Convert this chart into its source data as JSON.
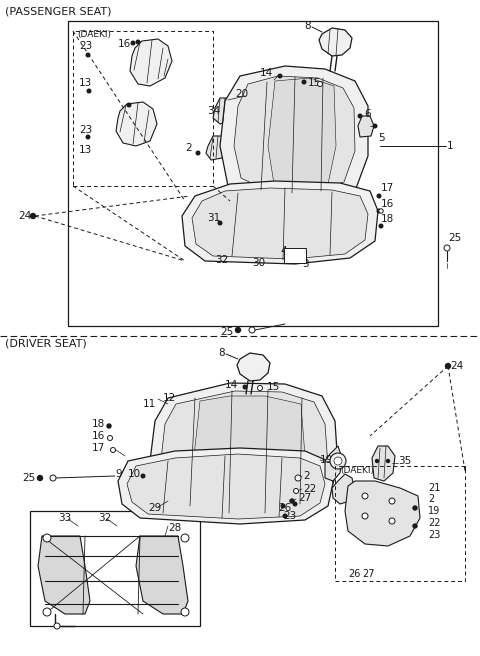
{
  "background_color": "#ffffff",
  "line_color": "#1a1a1a",
  "section1_label": "(PASSENGER SEAT)",
  "section2_label": "(DRIVER SEAT)",
  "daeki_label": "(DAEKI)",
  "font_size": 7.5,
  "fig_width": 4.8,
  "fig_height": 6.56,
  "dpi": 100,
  "seat_fill": "#f0f0f0",
  "seat_fill2": "#e4e4e4",
  "frame_fill": "#d8d8d8"
}
